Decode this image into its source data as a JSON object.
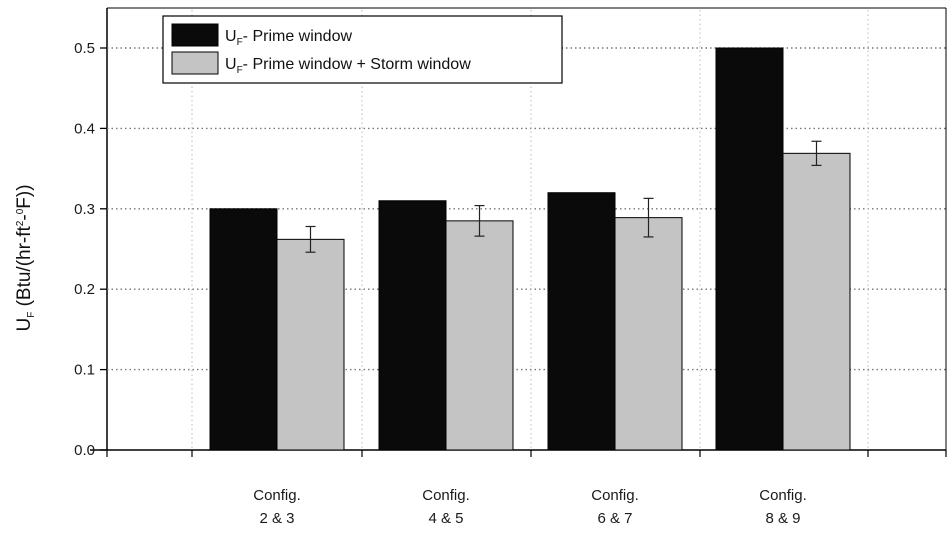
{
  "chart_data": {
    "type": "bar",
    "ylabel": {
      "main": "U",
      "main_sub": "F",
      "prefix": " (Btu/(hr-ft",
      "exp": "2",
      "mid": "-",
      "deg": "0",
      "suffix": "F))"
    },
    "ylim": [
      0,
      0.5
    ],
    "yticks": [
      "0.0",
      "0.1",
      "0.2",
      "0.3",
      "0.4",
      "0.5"
    ],
    "grid": true,
    "legend_position": "top-left",
    "categories": [
      {
        "line1": "Config.",
        "line2": "2 & 3"
      },
      {
        "line1": "Config.",
        "line2": "4 & 5"
      },
      {
        "line1": "Config.",
        "line2": "6 & 7"
      },
      {
        "line1": "Config.",
        "line2": "8 & 9"
      }
    ],
    "series": [
      {
        "legend_main": "U",
        "legend_sub": "F",
        "legend_rest": "- Prime window",
        "color": "#0a0a0a",
        "values": [
          0.3,
          0.31,
          0.32,
          0.5
        ],
        "errors": null
      },
      {
        "legend_main": "U",
        "legend_sub": "F",
        "legend_rest": "- Prime window + Storm window",
        "color": "#c4c4c4",
        "values": [
          0.262,
          0.285,
          0.289,
          0.369
        ],
        "errors": [
          0.016,
          0.019,
          0.024,
          0.015
        ]
      }
    ]
  }
}
